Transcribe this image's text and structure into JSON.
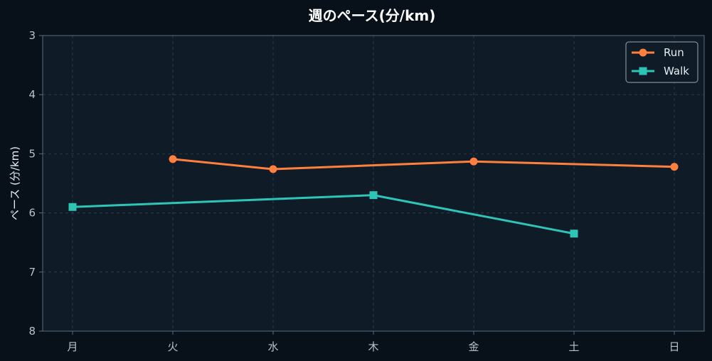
{
  "chart_data": {
    "type": "line",
    "title": "週のペース(分/km)",
    "xlabel": "",
    "ylabel": "ペース (分/km)",
    "categories": [
      "月",
      "火",
      "水",
      "木",
      "金",
      "土",
      "日"
    ],
    "y_ticks": [
      3,
      4,
      5,
      6,
      7,
      8
    ],
    "ylim": [
      3,
      8
    ],
    "y_inverted": true,
    "grid": true,
    "legend_position": "top-right",
    "series": [
      {
        "name": "Run",
        "color": "#ff7f3f",
        "marker": "circle",
        "values": [
          null,
          5.09,
          5.26,
          null,
          5.13,
          null,
          5.22
        ]
      },
      {
        "name": "Walk",
        "color": "#2ec4b6",
        "marker": "square",
        "values": [
          5.9,
          null,
          null,
          5.7,
          null,
          6.35,
          null
        ]
      }
    ]
  },
  "colors": {
    "background": "#08111a",
    "plot_background": "#0f1c28",
    "grid": "#2a3a4a",
    "axis": "#5b6b7a"
  }
}
